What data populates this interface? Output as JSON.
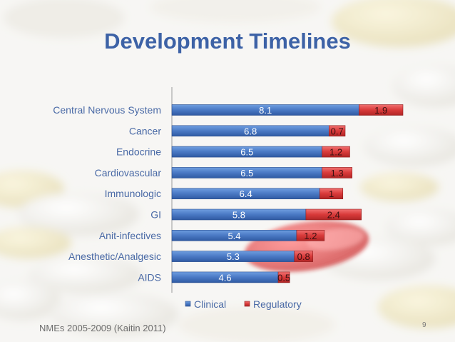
{
  "slide": {
    "title": "Development Timelines",
    "source": "NMEs 2005-2009 (Kaitin 2011)",
    "page_number": "9"
  },
  "colors": {
    "title": "#3d62a6",
    "clinical": "#4a79c4",
    "regulatory": "#d93a3a"
  },
  "chart_data": {
    "type": "bar",
    "orientation": "horizontal",
    "stacked": true,
    "categories": [
      "Central Nervous System",
      "Cancer",
      "Endocrine",
      "Cardiovascular",
      "Immunologic",
      "GI",
      "Anit-infectives",
      "Anesthetic/Analgesic",
      "AIDS"
    ],
    "series": [
      {
        "name": "Clinical",
        "values": [
          8.1,
          6.8,
          6.5,
          6.5,
          6.4,
          5.8,
          5.4,
          5.3,
          4.6
        ],
        "labels": [
          "8.1",
          "6.8",
          "6.5",
          "6.5",
          "6.4",
          "5.8",
          "5.4",
          "5.3",
          "4.6"
        ]
      },
      {
        "name": "Regulatory",
        "values": [
          1.9,
          0.7,
          1.2,
          1.3,
          1.0,
          2.4,
          1.2,
          0.8,
          0.5
        ],
        "labels": [
          "1.9",
          "0.7",
          "1.2",
          "1.3",
          "1",
          "2.4",
          "1.2",
          "0.8",
          "0.5"
        ]
      }
    ],
    "xlim": [
      0,
      10
    ],
    "grid": false,
    "legend_position": "bottom"
  }
}
